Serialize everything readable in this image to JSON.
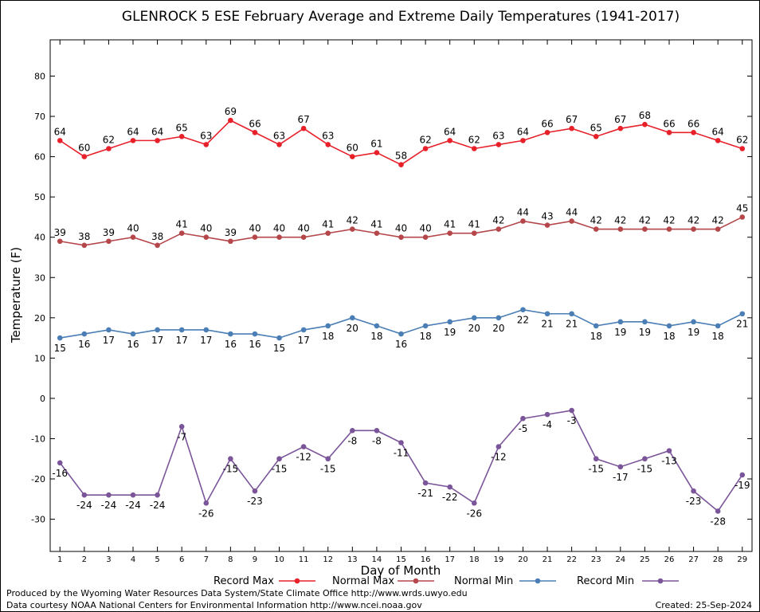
{
  "chart_data": {
    "type": "line",
    "title": "GLENROCK 5 ESE February Average and Extreme Daily Temperatures (1941-2017)",
    "xlabel": "Day of Month",
    "ylabel": "Temperature (F)",
    "x": [
      1,
      2,
      3,
      4,
      5,
      6,
      7,
      8,
      9,
      10,
      11,
      12,
      13,
      14,
      15,
      16,
      17,
      18,
      19,
      20,
      21,
      22,
      23,
      24,
      25,
      26,
      27,
      28,
      29
    ],
    "y_ticks": [
      -30,
      -20,
      -10,
      0,
      10,
      20,
      30,
      40,
      50,
      60,
      70,
      80
    ],
    "ylim": [
      -38,
      89
    ],
    "xlim": [
      0.6,
      29.4
    ],
    "grid": true,
    "legend_position": "bottom",
    "series": [
      {
        "name": "Record Max",
        "color": "#e8202a",
        "label_position": "above",
        "values": [
          64,
          60,
          62,
          64,
          64,
          65,
          63,
          69,
          66,
          63,
          67,
          63,
          60,
          61,
          58,
          62,
          64,
          62,
          63,
          64,
          66,
          67,
          65,
          67,
          68,
          66,
          66,
          64,
          62
        ]
      },
      {
        "name": "Normal Max",
        "color": "#b5474b",
        "label_position": "above",
        "values": [
          39,
          38,
          39,
          40,
          38,
          41,
          40,
          39,
          40,
          40,
          40,
          41,
          42,
          41,
          40,
          40,
          41,
          41,
          42,
          44,
          43,
          44,
          42,
          42,
          42,
          42,
          42,
          42,
          45
        ]
      },
      {
        "name": "Normal Min",
        "color": "#4a7eb5",
        "label_position": "below",
        "values": [
          15,
          16,
          17,
          16,
          17,
          17,
          17,
          16,
          16,
          15,
          17,
          18,
          20,
          18,
          16,
          18,
          19,
          20,
          20,
          22,
          21,
          21,
          18,
          19,
          19,
          18,
          19,
          18,
          21
        ]
      },
      {
        "name": "Record Min",
        "color": "#7b559a",
        "label_position": "below",
        "values": [
          -16,
          -24,
          -24,
          -24,
          -24,
          -7,
          -26,
          -15,
          -23,
          -15,
          -12,
          -15,
          -8,
          -8,
          -11,
          -21,
          -22,
          -26,
          -12,
          -5,
          -4,
          -3,
          -15,
          -17,
          -15,
          -13,
          -23,
          -28,
          -19
        ]
      }
    ]
  },
  "footer": {
    "produced_by": "Produced by the Wyoming Water Resources Data System/State Climate Office http://www.wrds.uwyo.edu",
    "data_courtesy": "Data courtesy NOAA National Centers for Environmental Information http://www.ncei.noaa.gov",
    "created": "Created:  25-Sep-2024"
  }
}
